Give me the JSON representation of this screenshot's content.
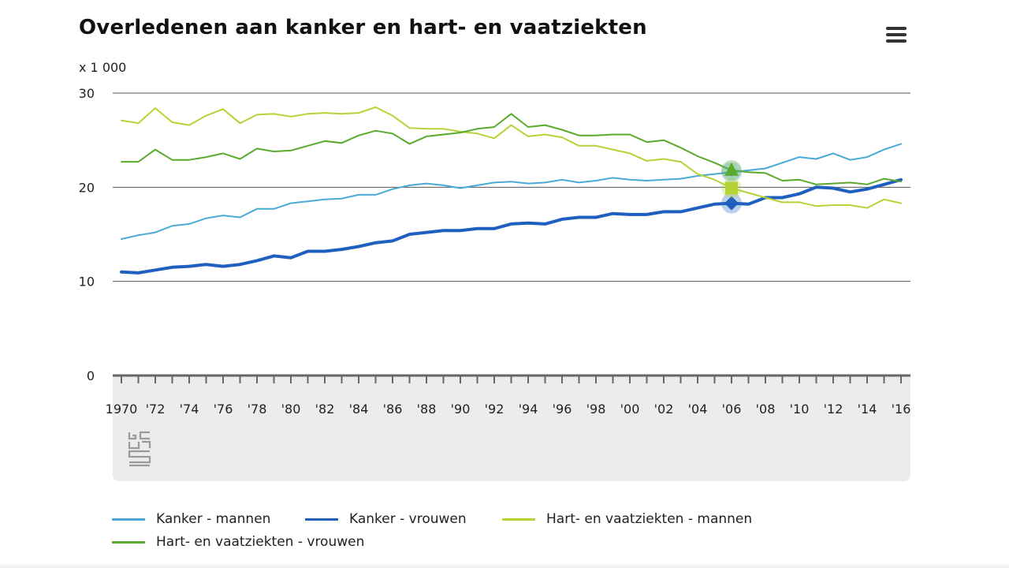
{
  "title": "Overledenen aan kanker en hart- en vaatziekten",
  "menu_icon": "hamburger-menu-icon",
  "chart_data": {
    "type": "line",
    "title": "Overledenen aan kanker en hart- en vaatziekten",
    "unit_label": "x 1 000",
    "xlabel": "",
    "ylabel": "",
    "ylim": [
      0,
      30
    ],
    "yticks": [
      0,
      10,
      20,
      30
    ],
    "grid": true,
    "legend_position": "bottom",
    "x": [
      1970,
      1971,
      1972,
      1973,
      1974,
      1975,
      1976,
      1977,
      1978,
      1979,
      1980,
      1981,
      1982,
      1983,
      1984,
      1985,
      1986,
      1987,
      1988,
      1989,
      1990,
      1991,
      1992,
      1993,
      1994,
      1995,
      1996,
      1997,
      1998,
      1999,
      2000,
      2001,
      2002,
      2003,
      2004,
      2005,
      2006,
      2007,
      2008,
      2009,
      2010,
      2011,
      2012,
      2013,
      2014,
      2015,
      2016
    ],
    "xtick_labels": [
      {
        "x": 1970,
        "label": "1970"
      },
      {
        "x": 1972,
        "label": "'72"
      },
      {
        "x": 1974,
        "label": "'74"
      },
      {
        "x": 1976,
        "label": "'76"
      },
      {
        "x": 1978,
        "label": "'78"
      },
      {
        "x": 1980,
        "label": "'80"
      },
      {
        "x": 1982,
        "label": "'82"
      },
      {
        "x": 1984,
        "label": "'84"
      },
      {
        "x": 1986,
        "label": "'86"
      },
      {
        "x": 1988,
        "label": "'88"
      },
      {
        "x": 1990,
        "label": "'90"
      },
      {
        "x": 1992,
        "label": "'92"
      },
      {
        "x": 1994,
        "label": "'94"
      },
      {
        "x": 1996,
        "label": "'96"
      },
      {
        "x": 1998,
        "label": "'98"
      },
      {
        "x": 2000,
        "label": "'00"
      },
      {
        "x": 2002,
        "label": "'02"
      },
      {
        "x": 2004,
        "label": "'04"
      },
      {
        "x": 2006,
        "label": "'06"
      },
      {
        "x": 2008,
        "label": "'08"
      },
      {
        "x": 2010,
        "label": "'10"
      },
      {
        "x": 2012,
        "label": "'12"
      },
      {
        "x": 2014,
        "label": "'14"
      },
      {
        "x": 2016,
        "label": "'16"
      }
    ],
    "highlight_x": 2006,
    "series": [
      {
        "name": "Kanker - mannen",
        "color": "#4aaad6",
        "width": 2,
        "marker": "circle",
        "values": [
          14.5,
          14.9,
          15.2,
          15.9,
          16.1,
          16.7,
          17.0,
          16.8,
          17.7,
          17.7,
          18.3,
          18.5,
          18.7,
          18.8,
          19.2,
          19.2,
          19.8,
          20.2,
          20.4,
          20.2,
          19.9,
          20.2,
          20.5,
          20.6,
          20.4,
          20.5,
          20.8,
          20.5,
          20.7,
          21.0,
          20.8,
          20.7,
          20.8,
          20.9,
          21.2,
          21.4,
          21.6,
          21.8,
          22.0,
          22.6,
          23.2,
          23.0,
          23.6,
          22.9,
          23.2,
          24.0,
          24.6
        ]
      },
      {
        "name": "Kanker - vrouwen",
        "color": "#1f5fbf",
        "width": 4,
        "marker": "diamond",
        "values": [
          11.0,
          10.9,
          11.2,
          11.5,
          11.6,
          11.8,
          11.6,
          11.8,
          12.2,
          12.7,
          12.5,
          13.2,
          13.2,
          13.4,
          13.7,
          14.1,
          14.3,
          15.0,
          15.2,
          15.4,
          15.4,
          15.6,
          15.6,
          16.1,
          16.2,
          16.1,
          16.6,
          16.8,
          16.8,
          17.2,
          17.1,
          17.1,
          17.4,
          17.4,
          17.8,
          18.2,
          18.3,
          18.2,
          18.9,
          18.9,
          19.3,
          20.0,
          19.9,
          19.5,
          19.8,
          20.3,
          20.8
        ]
      },
      {
        "name": "Hart- en vaatziekten - mannen",
        "color": "#b5d335",
        "width": 2,
        "marker": "square",
        "values": [
          27.1,
          26.8,
          28.4,
          26.9,
          26.6,
          27.6,
          28.3,
          26.8,
          27.7,
          27.8,
          27.5,
          27.8,
          27.9,
          27.8,
          27.9,
          28.5,
          27.6,
          26.3,
          26.2,
          26.2,
          25.9,
          25.7,
          25.2,
          26.6,
          25.4,
          25.6,
          25.3,
          24.4,
          24.4,
          24.0,
          23.6,
          22.8,
          23.0,
          22.7,
          21.4,
          20.8,
          19.9,
          19.4,
          18.9,
          18.4,
          18.4,
          18.0,
          18.1,
          18.1,
          17.8,
          18.7,
          18.3
        ]
      },
      {
        "name": "Hart- en vaatziekten - vrouwen",
        "color": "#5aaa2e",
        "width": 2,
        "marker": "triangle",
        "values": [
          22.7,
          22.7,
          24.0,
          22.9,
          22.9,
          23.2,
          23.6,
          23.0,
          24.1,
          23.8,
          23.9,
          24.4,
          24.9,
          24.7,
          25.5,
          26.0,
          25.7,
          24.6,
          25.4,
          25.6,
          25.8,
          26.2,
          26.4,
          27.8,
          26.4,
          26.6,
          26.1,
          25.5,
          25.5,
          25.6,
          25.6,
          24.8,
          25.0,
          24.2,
          23.3,
          22.6,
          21.8,
          21.6,
          21.5,
          20.7,
          20.8,
          20.3,
          20.4,
          20.5,
          20.3,
          20.9,
          20.6
        ]
      }
    ]
  }
}
